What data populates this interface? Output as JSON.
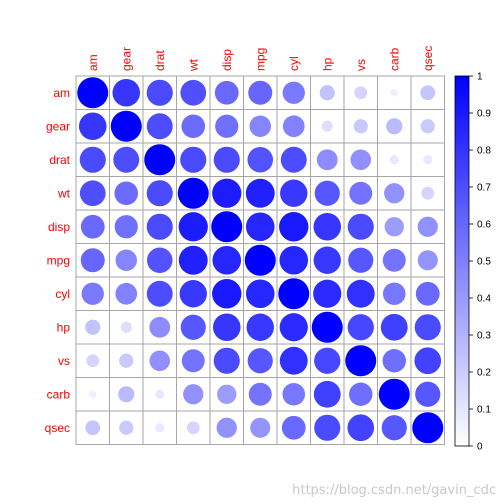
{
  "watermark": "https://blog.csdn.net/gavin_cdc",
  "chart_data": {
    "type": "heatmap",
    "method": "circle",
    "order": "absolute correlation (upper variables first)",
    "variables": [
      "am",
      "gear",
      "drat",
      "wt",
      "disp",
      "mpg",
      "cyl",
      "hp",
      "vs",
      "carb",
      "qsec"
    ],
    "values": [
      [
        1.0,
        0.79,
        0.71,
        0.69,
        0.59,
        0.6,
        0.52,
        0.24,
        0.17,
        0.06,
        0.23
      ],
      [
        0.79,
        1.0,
        0.7,
        0.58,
        0.56,
        0.48,
        0.49,
        0.13,
        0.21,
        0.27,
        0.21
      ],
      [
        0.71,
        0.7,
        1.0,
        0.71,
        0.71,
        0.68,
        0.7,
        0.45,
        0.44,
        0.09,
        0.09
      ],
      [
        0.69,
        0.58,
        0.71,
        1.0,
        0.89,
        0.87,
        0.78,
        0.66,
        0.55,
        0.43,
        0.17
      ],
      [
        0.59,
        0.56,
        0.71,
        0.89,
        1.0,
        0.85,
        0.9,
        0.79,
        0.71,
        0.39,
        0.43
      ],
      [
        0.6,
        0.48,
        0.68,
        0.87,
        0.85,
        1.0,
        0.85,
        0.78,
        0.66,
        0.55,
        0.42
      ],
      [
        0.52,
        0.49,
        0.7,
        0.78,
        0.9,
        0.85,
        1.0,
        0.83,
        0.81,
        0.53,
        0.59
      ],
      [
        0.24,
        0.13,
        0.45,
        0.66,
        0.79,
        0.78,
        0.83,
        1.0,
        0.72,
        0.75,
        0.71
      ],
      [
        0.17,
        0.21,
        0.44,
        0.55,
        0.71,
        0.66,
        0.81,
        0.72,
        1.0,
        0.57,
        0.74
      ],
      [
        0.06,
        0.27,
        0.09,
        0.43,
        0.39,
        0.55,
        0.53,
        0.75,
        0.57,
        1.0,
        0.66
      ],
      [
        0.23,
        0.21,
        0.09,
        0.17,
        0.43,
        0.42,
        0.59,
        0.71,
        0.74,
        0.66,
        1.0
      ]
    ],
    "label_color": "#ff0000",
    "color_low": "#ffffff",
    "color_high": "#0000ff",
    "grid_color": "#a6a6a6",
    "legend": {
      "position": "right",
      "range": [
        0,
        1
      ],
      "ticks": [
        "0",
        "0.1",
        "0.2",
        "0.3",
        "0.4",
        "0.5",
        "0.6",
        "0.7",
        "0.8",
        "0.9",
        "1"
      ]
    }
  }
}
